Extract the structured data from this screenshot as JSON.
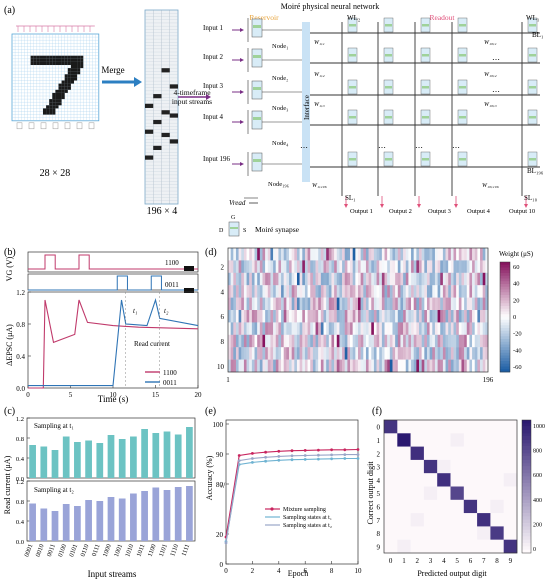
{
  "panels": {
    "a": "(a)",
    "b": "(b)",
    "c": "(c)",
    "d": "(d)",
    "e": "(e)",
    "f": "(f)"
  },
  "panel_a": {
    "title": "Moiré physical neural network",
    "image_size": "28 × 28",
    "merge_label": "Merge",
    "stream_size": "196 × 4",
    "stream_caption_1": "4-timeframe",
    "stream_caption_2": "input streams",
    "reservoir_label": "Reservoir",
    "readout_label": "Readout",
    "interface_label": "Interface",
    "inputs": [
      "Input 1",
      "Input 2",
      "Input 3",
      "Input 4",
      "Input 196"
    ],
    "nodes": [
      "Node₁",
      "Node₂",
      "Node₃",
      "Node₄",
      "Node₁₉₆"
    ],
    "wl_labels": [
      "WL₂",
      "WL₁"
    ],
    "bl_labels": [
      "BL₁",
      "BL₁₉₆"
    ],
    "sl_labels": [
      "SL₁",
      "SL₁₀"
    ],
    "outputs": [
      "Output 1",
      "Output 2",
      "Output 3",
      "Output 4",
      "Output 10"
    ],
    "weights_col1": [
      "W₁,₁",
      "W₁,₂",
      "W₁,₃",
      "W₁,₁₉₆"
    ],
    "weights_last": [
      "W₁₀,₁",
      "W₁₀,₂",
      "W₁₀,₃",
      "W₁₀,₁₉₆"
    ],
    "vread": "Vread",
    "legend_g": "G",
    "legend_d": "D",
    "legend_s": "S",
    "legend_text": "Moiré synapse",
    "colors": {
      "reservoir": "#e8a33a",
      "readout": "#e0507a",
      "interface": "#9ec9ea",
      "merge_arrow": "#2c7fc2"
    }
  },
  "panel_b": {
    "ylabel_top": "VG (V)",
    "ylabel_main": "ΔEPSC (μA)",
    "xlabel": "Time (s)",
    "code1": "1100",
    "code2": "0011",
    "t1": "t₁",
    "t2": "t₂",
    "read_current": "Read current",
    "legend": [
      "1100",
      "0011"
    ],
    "colors": {
      "s1100": "#c03a6b",
      "s0011": "#2f74b5"
    }
  },
  "panel_c": {
    "ylabel": "Read current (μA)",
    "xlabel": "Input streams",
    "label_t1": "Sampling at t₁",
    "label_t2": "Sampling at t₂",
    "colors": {
      "t1": "#6cc3c3",
      "t2": "#9aa4d8"
    }
  },
  "panel_d": {
    "cbar_title": "Weight (μS)",
    "cbar_ticks": [
      "60",
      "40",
      "20",
      "0",
      "-20",
      "-40",
      "-60"
    ],
    "y_ticks": [
      "2",
      "4",
      "6",
      "8",
      "10"
    ],
    "x_ticks": [
      "1",
      "196"
    ]
  },
  "panel_e": {
    "ylabel": "Accuracy (%)",
    "xlabel": "Epoch",
    "legend": [
      "Mixture sampling",
      "Sampling states at t₁",
      "Sampling states at t₂"
    ],
    "colors": {
      "mix": "#c8245e",
      "t1": "#6fb3d2",
      "t2": "#9aa6c8"
    }
  },
  "panel_f": {
    "ylabel": "Correct output digit",
    "xlabel": "Predicted output digit",
    "cbar_ticks": [
      "1000",
      "800",
      "600",
      "400",
      "200",
      "0"
    ]
  },
  "chart_data": [
    {
      "type": "line",
      "title": "",
      "xlabel": "Time (s)",
      "ylabel": "ΔEPSC (μA)",
      "xlim": [
        0,
        20
      ],
      "ylim": [
        0,
        1.2
      ],
      "series": [
        {
          "name": "1100",
          "x": [
            0,
            1.8,
            2.0,
            3.0,
            5.5,
            6.0,
            7.0,
            10,
            13,
            20
          ],
          "y": [
            0,
            0,
            1.1,
            0.57,
            0.67,
            1.1,
            0.82,
            0.78,
            0.76,
            0.74
          ]
        },
        {
          "name": "0011",
          "x": [
            0,
            10,
            11.0,
            11.5,
            14,
            15,
            15.5,
            20
          ],
          "y": [
            0.03,
            0.03,
            1.1,
            0.8,
            0.78,
            1.1,
            0.87,
            0.78
          ]
        }
      ]
    },
    {
      "type": "bar",
      "title": "",
      "xlabel": "Input streams",
      "ylabel": "Read current (μA)",
      "categories": [
        "0001",
        "0010",
        "0011",
        "0100",
        "0101",
        "0110",
        "0111",
        "1000",
        "1001",
        "1010",
        "1011",
        "1100",
        "1101",
        "1110",
        "1111"
      ],
      "series": [
        {
          "name": "Sampling at t₁",
          "values": [
            0.66,
            0.63,
            0.56,
            0.83,
            0.72,
            0.75,
            0.7,
            0.86,
            0.78,
            0.83,
            0.98,
            0.9,
            0.93,
            0.87,
            1.02
          ]
        },
        {
          "name": "Sampling at t₂",
          "values": [
            0.75,
            0.65,
            0.6,
            0.74,
            0.7,
            0.82,
            0.8,
            0.88,
            0.85,
            0.95,
            1.0,
            1.07,
            1.02,
            1.08,
            1.1
          ]
        }
      ],
      "ylim": [
        0,
        1.2
      ]
    },
    {
      "type": "line",
      "title": "",
      "xlabel": "Epoch",
      "ylabel": "Accuracy (%)",
      "xlim": [
        0,
        10
      ],
      "ylim": [
        0,
        100
      ],
      "series": [
        {
          "name": "Mixture sampling",
          "x": [
            0,
            1,
            2,
            3,
            4,
            5,
            6,
            7,
            8,
            9,
            10
          ],
          "y": [
            18,
            89.5,
            90.2,
            90.6,
            90.9,
            91.1,
            91.2,
            91.3,
            91.4,
            91.4,
            91.5
          ]
        },
        {
          "name": "Sampling states at t₁",
          "x": [
            0,
            1,
            2,
            3,
            4,
            5,
            6,
            7,
            8,
            9,
            10
          ],
          "y": [
            15,
            86.5,
            87.2,
            87.6,
            87.9,
            88.1,
            88.2,
            88.3,
            88.4,
            88.5,
            88.5
          ]
        },
        {
          "name": "Sampling states at t₂",
          "x": [
            0,
            1,
            2,
            3,
            4,
            5,
            6,
            7,
            8,
            9,
            10
          ],
          "y": [
            14,
            87.8,
            88.5,
            88.9,
            89.2,
            89.4,
            89.5,
            89.6,
            89.7,
            89.8,
            89.8
          ]
        }
      ]
    },
    {
      "type": "heatmap",
      "title": "",
      "xlabel": "Predicted output digit",
      "ylabel": "Correct output digit",
      "categories": [
        "0",
        "1",
        "2",
        "3",
        "4",
        "5",
        "6",
        "7",
        "8",
        "9"
      ],
      "diagonal": [
        880,
        1080,
        900,
        880,
        900,
        800,
        880,
        900,
        850,
        880
      ],
      "zlim": [
        0,
        1000
      ]
    }
  ]
}
